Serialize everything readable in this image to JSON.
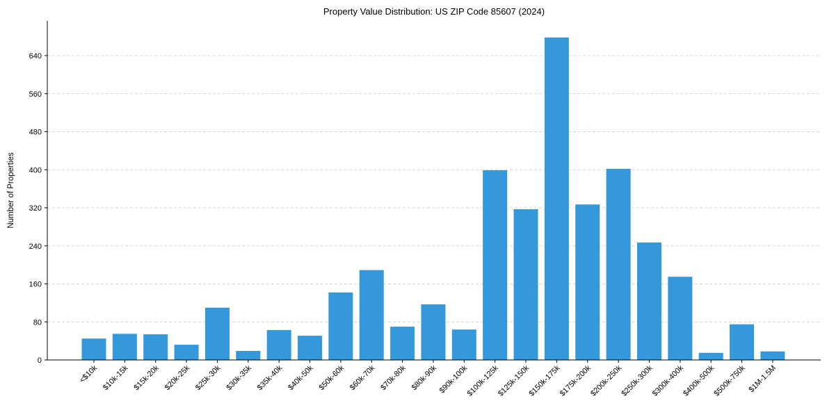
{
  "chart_data": {
    "type": "bar",
    "title": "Property Value Distribution: US ZIP Code 85607 (2024)",
    "xlabel": "",
    "ylabel": "Number of Properties",
    "ylim": [
      0,
      710
    ],
    "yticks": [
      0,
      80,
      160,
      240,
      320,
      400,
      480,
      560,
      640
    ],
    "grid": "y-dashed",
    "bar_color": "#3498db",
    "categories": [
      "<$10k",
      "$10k-15k",
      "$15k-20k",
      "$20k-25k",
      "$25k-30k",
      "$30k-35k",
      "$35k-40k",
      "$40k-50k",
      "$50k-60k",
      "$60k-70k",
      "$70k-80k",
      "$80k-90k",
      "$90k-100k",
      "$100k-125k",
      "$125k-150k",
      "$150k-175k",
      "$175k-200k",
      "$200k-250k",
      "$250k-300k",
      "$300k-400k",
      "$400k-500k",
      "$500k-750k",
      "$1M-1.5M"
    ],
    "values": [
      45,
      55,
      54,
      32,
      110,
      19,
      63,
      51,
      142,
      189,
      70,
      117,
      64,
      399,
      317,
      678,
      327,
      402,
      247,
      175,
      15,
      75,
      18
    ]
  }
}
